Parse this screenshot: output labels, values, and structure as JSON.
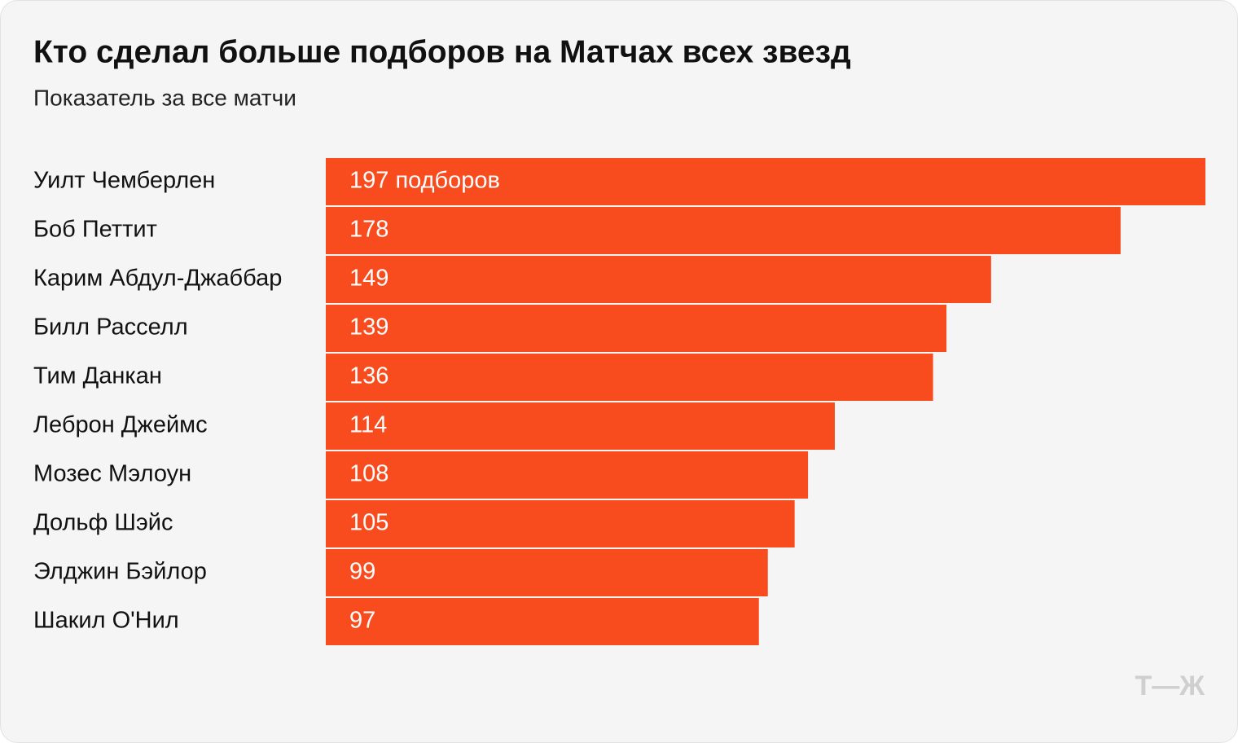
{
  "chart_data": {
    "type": "bar",
    "orientation": "horizontal",
    "title": "Кто сделал больше подборов на Матчах всех звезд",
    "subtitle": "Показатель за все матчи",
    "categories": [
      "Уилт Чемберлен",
      "Боб Петтит",
      "Карим Абдул-Джаббар",
      "Билл Расселл",
      "Тим Данкан",
      "Леброн Джеймс",
      "Мозес Мэлоун",
      "Дольф Шэйс",
      "Элджин Бэйлор",
      "Шакил О'Нил"
    ],
    "values": [
      197,
      178,
      149,
      139,
      136,
      114,
      108,
      105,
      99,
      97
    ],
    "value_labels": [
      "197 подборов",
      "178",
      "149",
      "139",
      "136",
      "114",
      "108",
      "105",
      "99",
      "97"
    ],
    "color": "#f84c1e"
  },
  "logo": "Т—Ж"
}
